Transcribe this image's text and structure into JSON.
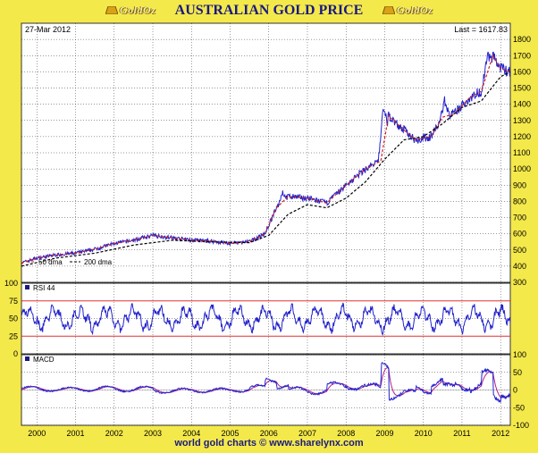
{
  "header": {
    "title": "AUSTRALIAN GOLD PRICE",
    "logo_text": "GoldOz"
  },
  "footer": {
    "text": "world gold charts © www.sharelynx.com"
  },
  "colors": {
    "background": "#f4e94a",
    "price": "#2222cc",
    "ma": "#d02020",
    "panel": "#ffffff",
    "band": "#e03030"
  },
  "chart_data": [
    {
      "type": "line",
      "panel": "price",
      "date_label": "27-Mar  2012",
      "last_label": "Last = 1617.83",
      "ylim": [
        300,
        1900
      ],
      "yticks": [
        300,
        400,
        500,
        600,
        700,
        800,
        900,
        1000,
        1100,
        1200,
        1300,
        1400,
        1500,
        1600,
        1700,
        1800
      ],
      "xlim": [
        1999.6,
        2012.25
      ],
      "legend": [
        "50 dma",
        "200 dma"
      ],
      "series": [
        {
          "name": "50 dma",
          "x": [
            1999.6,
            2000.0,
            2000.5,
            2001.0,
            2001.5,
            2002.0,
            2002.5,
            2003.0,
            2003.5,
            2004.0,
            2004.5,
            2005.0,
            2005.5,
            2005.9,
            2006.2,
            2006.5,
            2007.0,
            2007.5,
            2008.0,
            2008.5,
            2008.9,
            2009.1,
            2009.4,
            2009.8,
            2010.2,
            2010.5,
            2010.8,
            2011.2,
            2011.5,
            2011.8,
            2012.0,
            2012.25
          ],
          "values": [
            420,
            450,
            470,
            480,
            505,
            540,
            560,
            590,
            575,
            560,
            555,
            540,
            550,
            600,
            760,
            830,
            820,
            790,
            900,
            1000,
            1050,
            1330,
            1260,
            1180,
            1200,
            1320,
            1340,
            1440,
            1480,
            1700,
            1620,
            1600
          ]
        },
        {
          "name": "200 dma",
          "x": [
            1999.6,
            2000.5,
            2001.5,
            2002.5,
            2003.5,
            2004.5,
            2005.5,
            2006.0,
            2006.5,
            2007.0,
            2007.5,
            2008.0,
            2008.5,
            2009.0,
            2009.5,
            2010.0,
            2010.5,
            2011.0,
            2011.5,
            2012.0,
            2012.25
          ],
          "values": [
            400,
            450,
            480,
            530,
            560,
            550,
            545,
            590,
            720,
            780,
            760,
            820,
            920,
            1060,
            1180,
            1200,
            1280,
            1380,
            1420,
            1570,
            1600
          ]
        }
      ]
    },
    {
      "type": "line",
      "panel": "rsi",
      "label": "RSI 44",
      "ylim": [
        0,
        100
      ],
      "yticks": [
        0,
        25,
        50,
        75,
        100
      ],
      "bands": [
        25,
        75
      ]
    },
    {
      "type": "line",
      "panel": "macd",
      "label": "MACD",
      "ylim": [
        -100,
        100
      ],
      "yticks": [
        -100,
        -50,
        0,
        50,
        100
      ]
    },
    {
      "type": "axis",
      "categories": [
        "2000",
        "2001",
        "2002",
        "2003",
        "2004",
        "2005",
        "2006",
        "2007",
        "2008",
        "2009",
        "2010",
        "2011",
        "2012"
      ]
    }
  ]
}
